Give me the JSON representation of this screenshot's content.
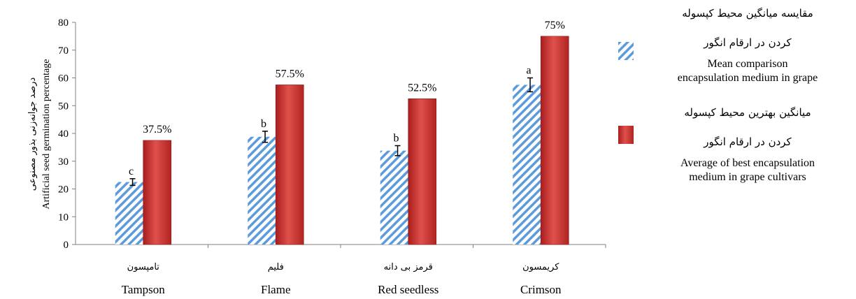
{
  "chart_data": {
    "type": "bar",
    "categories_fa": [
      "تامپسون",
      "فلیم",
      "قرمز بی دانه",
      "کریمسون"
    ],
    "categories": [
      "Tampson",
      "Flame",
      "Red seedless",
      "Crimson"
    ],
    "ylabel_fa": "درصد جوانه‌زنی بذور مصنوعی",
    "ylabel": "Artificial seed germination percentage",
    "ylim": [
      0,
      80
    ],
    "yticks": [
      "0",
      "10",
      "20",
      "30",
      "40",
      "50",
      "60",
      "70",
      "80"
    ],
    "ytick_values": [
      0,
      10,
      20,
      30,
      40,
      50,
      60,
      70,
      80
    ],
    "grid": false,
    "legend_position": "right",
    "series": [
      {
        "name_fa": "مقایسه میانگین محیط کپسوله کردن در ارقام انگور",
        "name": "Mean comparison encapsulation medium in grape",
        "values": [
          22.5,
          38.8,
          33.8,
          57.5
        ],
        "errors": [
          1.2,
          2.0,
          1.8,
          2.5
        ],
        "letters": [
          "c",
          "b",
          "b",
          "a"
        ],
        "color": "#4f8fd8",
        "pattern": "diagonal-hatch"
      },
      {
        "name_fa": "میانگین بهترین محیط کپسوله کردن در ارقام انگور",
        "name": "Average of best encapsulation medium in grape cultivars",
        "values": [
          37.5,
          57.5,
          52.5,
          75
        ],
        "data_labels": [
          "37.5%",
          "57.5%",
          "52.5%",
          "75%"
        ],
        "color": "#d03a36",
        "pattern": "solid"
      }
    ]
  },
  "legend": {
    "s1_fa_1": "مقایسه میانگین محیط کپسوله",
    "s1_fa_2": "کردن در ارقام انگور",
    "s1_en_1": "Mean comparison",
    "s1_en_2": "encapsulation medium in grape",
    "s2_fa_1": "میانگین بهترین محیط کپسوله",
    "s2_fa_2": "کردن در ارقام انگور",
    "s2_en_1": "Average of best encapsulation",
    "s2_en_2": "medium in grape cultivars"
  }
}
